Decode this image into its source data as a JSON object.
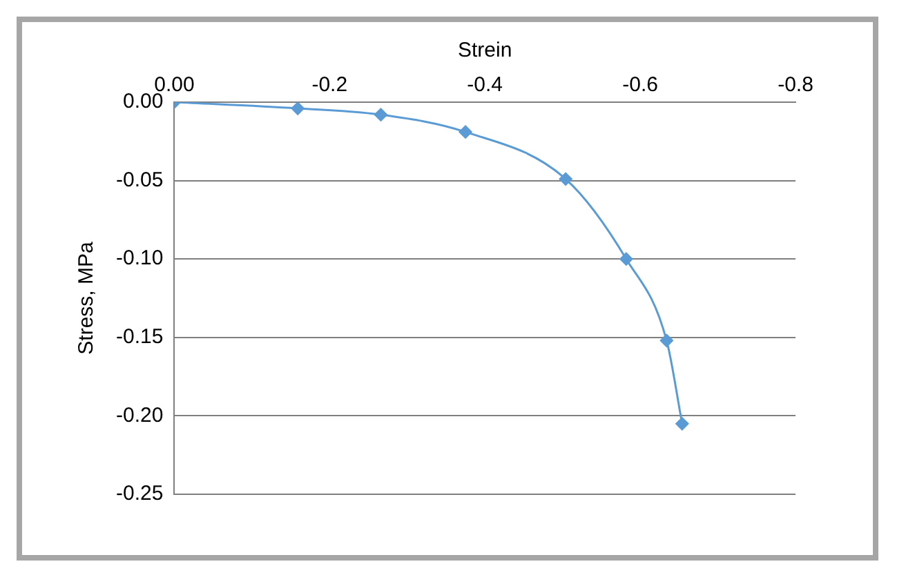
{
  "chart_data": {
    "type": "line",
    "xlabel": "Strein",
    "ylabel": "Stress, MPa",
    "x": [
      0,
      -0.159,
      -0.266,
      -0.375,
      -0.504,
      -0.582,
      -0.634,
      -0.654
    ],
    "values": [
      0,
      -0.004,
      -0.008,
      -0.019,
      -0.049,
      -0.1,
      -0.152,
      -0.205
    ],
    "color": "#5b9bd5",
    "marker": "diamond",
    "grid": "y",
    "xlim": [
      0,
      -0.8
    ],
    "xticks": [
      {
        "value": 0,
        "label": "0.00"
      },
      -0.2,
      -0.4,
      -0.6,
      -0.8
    ],
    "ylim": [
      -0.25,
      0
    ],
    "yticks": [
      {
        "value": 0,
        "label": "0.00"
      },
      -0.05,
      {
        "value": -0.1,
        "label": "-0.10"
      },
      -0.15,
      {
        "value": -0.2,
        "label": "-0.20"
      },
      -0.25
    ]
  }
}
